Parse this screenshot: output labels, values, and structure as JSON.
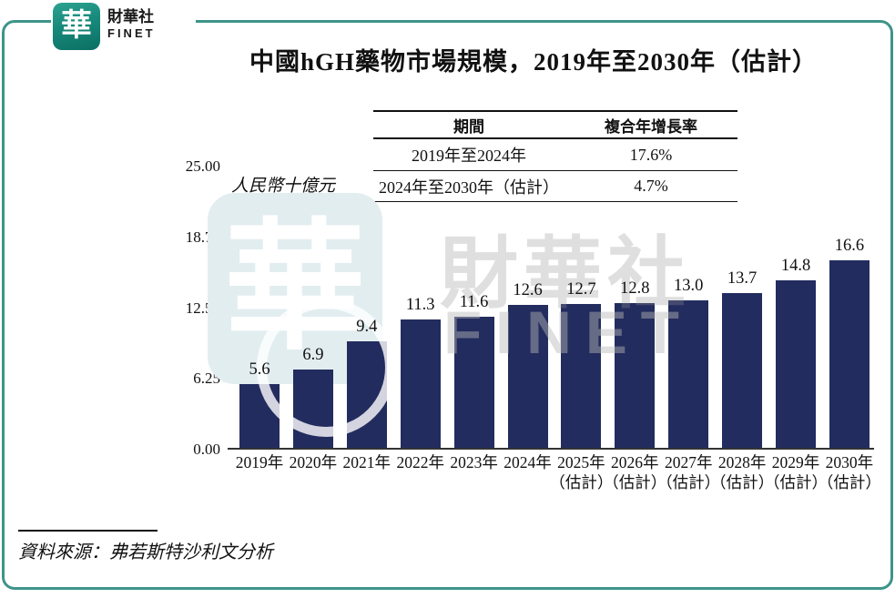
{
  "logo": {
    "glyph": "華",
    "name_zh": "財華社",
    "name_en": "FINET"
  },
  "title": "中國hGH藥物市場規模，2019年至2030年（估計）",
  "cagr_table": {
    "headers": {
      "period": "期間",
      "cagr": "複合年增長率"
    },
    "rows": [
      {
        "period": "2019年至2024年",
        "cagr": "17.6%"
      },
      {
        "period": "2024年至2030年（估計）",
        "cagr": "4.7%"
      }
    ]
  },
  "chart_data": {
    "type": "bar",
    "title": "中國hGH藥物市場規模，2019年至2030年（估計）",
    "xlabel": "",
    "ylabel": "人民幣十億元",
    "ylim": [
      0,
      25
    ],
    "yticks": [
      "25.00",
      "18.75",
      "12.50",
      "6.25",
      "0.00"
    ],
    "grid": false,
    "legend_position": "none",
    "bar_color": "#232c5e",
    "categories": [
      {
        "year": "2019年",
        "note": ""
      },
      {
        "year": "2020年",
        "note": ""
      },
      {
        "year": "2021年",
        "note": ""
      },
      {
        "year": "2022年",
        "note": ""
      },
      {
        "year": "2023年",
        "note": ""
      },
      {
        "year": "2024年",
        "note": ""
      },
      {
        "year": "2025年",
        "note": "（估計）"
      },
      {
        "year": "2026年",
        "note": "（估計）"
      },
      {
        "year": "2027年",
        "note": "（估計）"
      },
      {
        "year": "2028年",
        "note": "（估計）"
      },
      {
        "year": "2029年",
        "note": "（估計）"
      },
      {
        "year": "2030年",
        "note": "（估計）"
      }
    ],
    "values": [
      5.6,
      6.9,
      9.4,
      11.3,
      11.6,
      12.6,
      12.7,
      12.8,
      13.0,
      13.7,
      14.8,
      16.6
    ],
    "value_labels": [
      "5.6",
      "6.9",
      "9.4",
      "11.3",
      "11.6",
      "12.6",
      "12.7",
      "12.8",
      "13.0",
      "13.7",
      "14.8",
      "16.6"
    ]
  },
  "watermark": {
    "glyph": "華",
    "text_zh": "財華社",
    "text_en": "FINET"
  },
  "source": "資料來源：弗若斯特沙利文分析",
  "colors": {
    "frame": "#3e948a",
    "bar": "#232c5e",
    "logo_teal": "#17897b"
  }
}
